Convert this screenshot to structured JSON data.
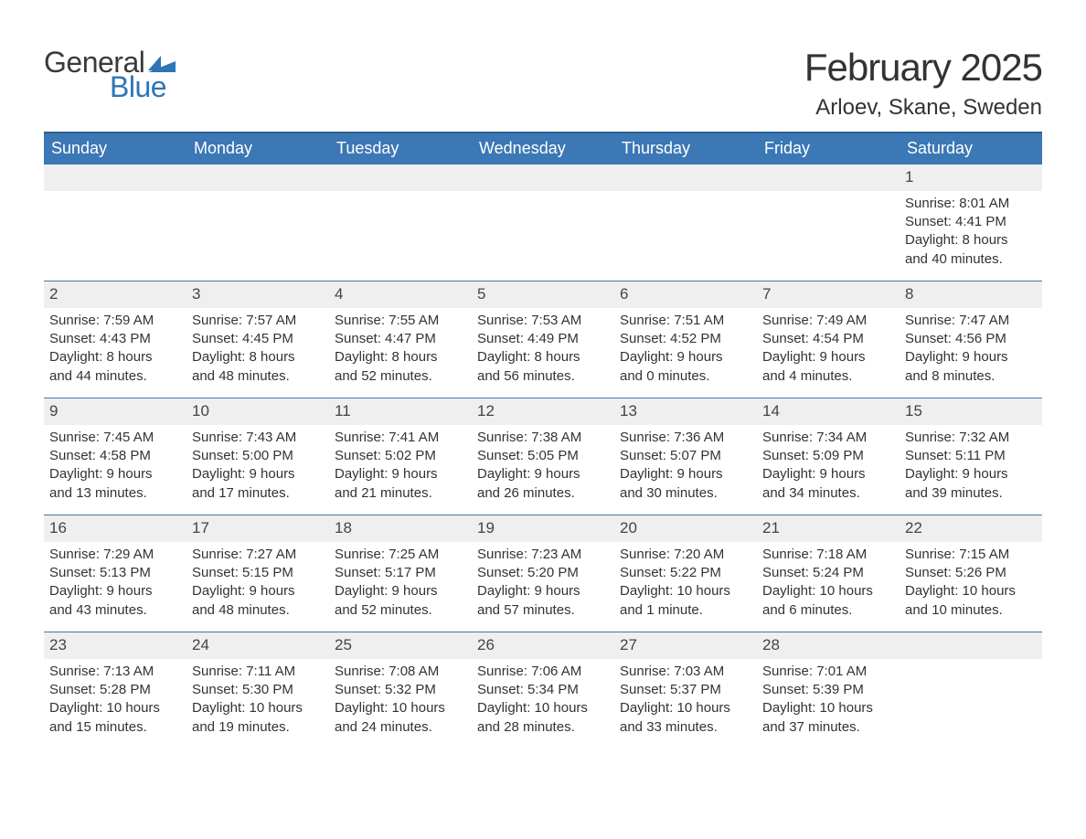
{
  "brand": {
    "text_general": "General",
    "text_blue": "Blue",
    "flag_color": "#2e75b6"
  },
  "title": "February 2025",
  "location": "Arloev, Skane, Sweden",
  "colors": {
    "header_bg": "#3b78b5",
    "header_border_top": "#2e5d8f",
    "row_border": "#3b78b5",
    "daynum_bg": "#efefef",
    "text": "#333333",
    "white": "#ffffff"
  },
  "weekdays": [
    "Sunday",
    "Monday",
    "Tuesday",
    "Wednesday",
    "Thursday",
    "Friday",
    "Saturday"
  ],
  "weeks": [
    [
      {
        "day": "",
        "lines": []
      },
      {
        "day": "",
        "lines": []
      },
      {
        "day": "",
        "lines": []
      },
      {
        "day": "",
        "lines": []
      },
      {
        "day": "",
        "lines": []
      },
      {
        "day": "",
        "lines": []
      },
      {
        "day": "1",
        "lines": [
          "Sunrise: 8:01 AM",
          "Sunset: 4:41 PM",
          "Daylight: 8 hours",
          "and 40 minutes."
        ]
      }
    ],
    [
      {
        "day": "2",
        "lines": [
          "Sunrise: 7:59 AM",
          "Sunset: 4:43 PM",
          "Daylight: 8 hours",
          "and 44 minutes."
        ]
      },
      {
        "day": "3",
        "lines": [
          "Sunrise: 7:57 AM",
          "Sunset: 4:45 PM",
          "Daylight: 8 hours",
          "and 48 minutes."
        ]
      },
      {
        "day": "4",
        "lines": [
          "Sunrise: 7:55 AM",
          "Sunset: 4:47 PM",
          "Daylight: 8 hours",
          "and 52 minutes."
        ]
      },
      {
        "day": "5",
        "lines": [
          "Sunrise: 7:53 AM",
          "Sunset: 4:49 PM",
          "Daylight: 8 hours",
          "and 56 minutes."
        ]
      },
      {
        "day": "6",
        "lines": [
          "Sunrise: 7:51 AM",
          "Sunset: 4:52 PM",
          "Daylight: 9 hours",
          "and 0 minutes."
        ]
      },
      {
        "day": "7",
        "lines": [
          "Sunrise: 7:49 AM",
          "Sunset: 4:54 PM",
          "Daylight: 9 hours",
          "and 4 minutes."
        ]
      },
      {
        "day": "8",
        "lines": [
          "Sunrise: 7:47 AM",
          "Sunset: 4:56 PM",
          "Daylight: 9 hours",
          "and 8 minutes."
        ]
      }
    ],
    [
      {
        "day": "9",
        "lines": [
          "Sunrise: 7:45 AM",
          "Sunset: 4:58 PM",
          "Daylight: 9 hours",
          "and 13 minutes."
        ]
      },
      {
        "day": "10",
        "lines": [
          "Sunrise: 7:43 AM",
          "Sunset: 5:00 PM",
          "Daylight: 9 hours",
          "and 17 minutes."
        ]
      },
      {
        "day": "11",
        "lines": [
          "Sunrise: 7:41 AM",
          "Sunset: 5:02 PM",
          "Daylight: 9 hours",
          "and 21 minutes."
        ]
      },
      {
        "day": "12",
        "lines": [
          "Sunrise: 7:38 AM",
          "Sunset: 5:05 PM",
          "Daylight: 9 hours",
          "and 26 minutes."
        ]
      },
      {
        "day": "13",
        "lines": [
          "Sunrise: 7:36 AM",
          "Sunset: 5:07 PM",
          "Daylight: 9 hours",
          "and 30 minutes."
        ]
      },
      {
        "day": "14",
        "lines": [
          "Sunrise: 7:34 AM",
          "Sunset: 5:09 PM",
          "Daylight: 9 hours",
          "and 34 minutes."
        ]
      },
      {
        "day": "15",
        "lines": [
          "Sunrise: 7:32 AM",
          "Sunset: 5:11 PM",
          "Daylight: 9 hours",
          "and 39 minutes."
        ]
      }
    ],
    [
      {
        "day": "16",
        "lines": [
          "Sunrise: 7:29 AM",
          "Sunset: 5:13 PM",
          "Daylight: 9 hours",
          "and 43 minutes."
        ]
      },
      {
        "day": "17",
        "lines": [
          "Sunrise: 7:27 AM",
          "Sunset: 5:15 PM",
          "Daylight: 9 hours",
          "and 48 minutes."
        ]
      },
      {
        "day": "18",
        "lines": [
          "Sunrise: 7:25 AM",
          "Sunset: 5:17 PM",
          "Daylight: 9 hours",
          "and 52 minutes."
        ]
      },
      {
        "day": "19",
        "lines": [
          "Sunrise: 7:23 AM",
          "Sunset: 5:20 PM",
          "Daylight: 9 hours",
          "and 57 minutes."
        ]
      },
      {
        "day": "20",
        "lines": [
          "Sunrise: 7:20 AM",
          "Sunset: 5:22 PM",
          "Daylight: 10 hours",
          "and 1 minute."
        ]
      },
      {
        "day": "21",
        "lines": [
          "Sunrise: 7:18 AM",
          "Sunset: 5:24 PM",
          "Daylight: 10 hours",
          "and 6 minutes."
        ]
      },
      {
        "day": "22",
        "lines": [
          "Sunrise: 7:15 AM",
          "Sunset: 5:26 PM",
          "Daylight: 10 hours",
          "and 10 minutes."
        ]
      }
    ],
    [
      {
        "day": "23",
        "lines": [
          "Sunrise: 7:13 AM",
          "Sunset: 5:28 PM",
          "Daylight: 10 hours",
          "and 15 minutes."
        ]
      },
      {
        "day": "24",
        "lines": [
          "Sunrise: 7:11 AM",
          "Sunset: 5:30 PM",
          "Daylight: 10 hours",
          "and 19 minutes."
        ]
      },
      {
        "day": "25",
        "lines": [
          "Sunrise: 7:08 AM",
          "Sunset: 5:32 PM",
          "Daylight: 10 hours",
          "and 24 minutes."
        ]
      },
      {
        "day": "26",
        "lines": [
          "Sunrise: 7:06 AM",
          "Sunset: 5:34 PM",
          "Daylight: 10 hours",
          "and 28 minutes."
        ]
      },
      {
        "day": "27",
        "lines": [
          "Sunrise: 7:03 AM",
          "Sunset: 5:37 PM",
          "Daylight: 10 hours",
          "and 33 minutes."
        ]
      },
      {
        "day": "28",
        "lines": [
          "Sunrise: 7:01 AM",
          "Sunset: 5:39 PM",
          "Daylight: 10 hours",
          "and 37 minutes."
        ]
      },
      {
        "day": "",
        "lines": []
      }
    ]
  ]
}
